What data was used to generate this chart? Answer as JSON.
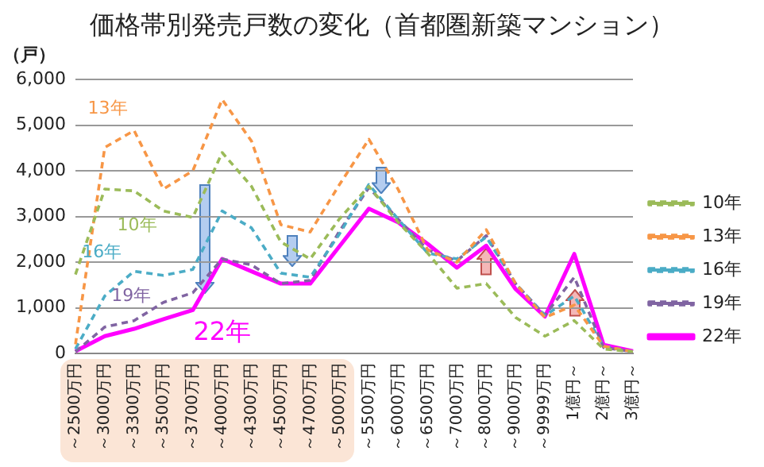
{
  "chart_data": {
    "type": "line",
    "title": "価格帯別発売戸数の変化（首都圏新築マンション）",
    "ylabel": "（戸）",
    "categories": [
      "～2500万円",
      "～3000万円",
      "～3300万円",
      "～3500万円",
      "～3700万円",
      "～4000万円",
      "～4300万円",
      "～4500万円",
      "～4700万円",
      "～5000万円",
      "～5500万円",
      "～6000万円",
      "～6500万円",
      "～7000万円",
      "～8000万円",
      "～9000万円",
      "～9999万円",
      "1億円～",
      "2億円～",
      "3億円～"
    ],
    "series": [
      {
        "name": "10年",
        "color": "#9bbb59",
        "line_style": "dashed",
        "values": [
          1730,
          3600,
          3560,
          3120,
          2980,
          4400,
          3660,
          2440,
          2070,
          2950,
          3660,
          2870,
          2200,
          1430,
          1530,
          790,
          380,
          720,
          100,
          40
        ]
      },
      {
        "name": "13年",
        "color": "#f79646",
        "line_style": "dashed",
        "values": [
          200,
          4510,
          4880,
          3600,
          4000,
          5560,
          4650,
          2820,
          2660,
          3700,
          4690,
          3590,
          2270,
          2000,
          2710,
          1530,
          790,
          1060,
          160,
          40
        ]
      },
      {
        "name": "16年",
        "color": "#4bacc6",
        "line_style": "dashed",
        "values": [
          100,
          1260,
          1800,
          1710,
          1840,
          3120,
          2750,
          1760,
          1670,
          2620,
          3700,
          2940,
          2200,
          2070,
          2550,
          1530,
          830,
          1260,
          160,
          40
        ]
      },
      {
        "name": "19年",
        "color": "#8064a2",
        "line_style": "dashed",
        "values": [
          40,
          580,
          720,
          1120,
          1330,
          2070,
          1940,
          1530,
          1600,
          2680,
          3630,
          2940,
          2270,
          2030,
          2580,
          1530,
          840,
          1670,
          130,
          40
        ]
      },
      {
        "name": "22年",
        "color": "#ff00ff",
        "line_style": "solid",
        "values": [
          50,
          380,
          540,
          750,
          950,
          2070,
          1800,
          1530,
          1530,
          2350,
          3170,
          2870,
          2400,
          1880,
          2360,
          1410,
          810,
          2180,
          190,
          50
        ]
      }
    ],
    "ylim": [
      0,
      6000
    ],
    "yticks": [
      {
        "value": 0,
        "label": "0"
      },
      {
        "value": 1000,
        "label": "1,000"
      },
      {
        "value": 2000,
        "label": "2,000"
      },
      {
        "value": 3000,
        "label": "3,000"
      },
      {
        "value": 4000,
        "label": "4,000"
      },
      {
        "value": 5000,
        "label": "5,000"
      },
      {
        "value": 6000,
        "label": "6,000"
      }
    ],
    "grid": "y",
    "legend": "right",
    "marker": "none",
    "annotations": [
      "13年",
      "10年",
      "16年",
      "19年",
      "22年"
    ]
  }
}
